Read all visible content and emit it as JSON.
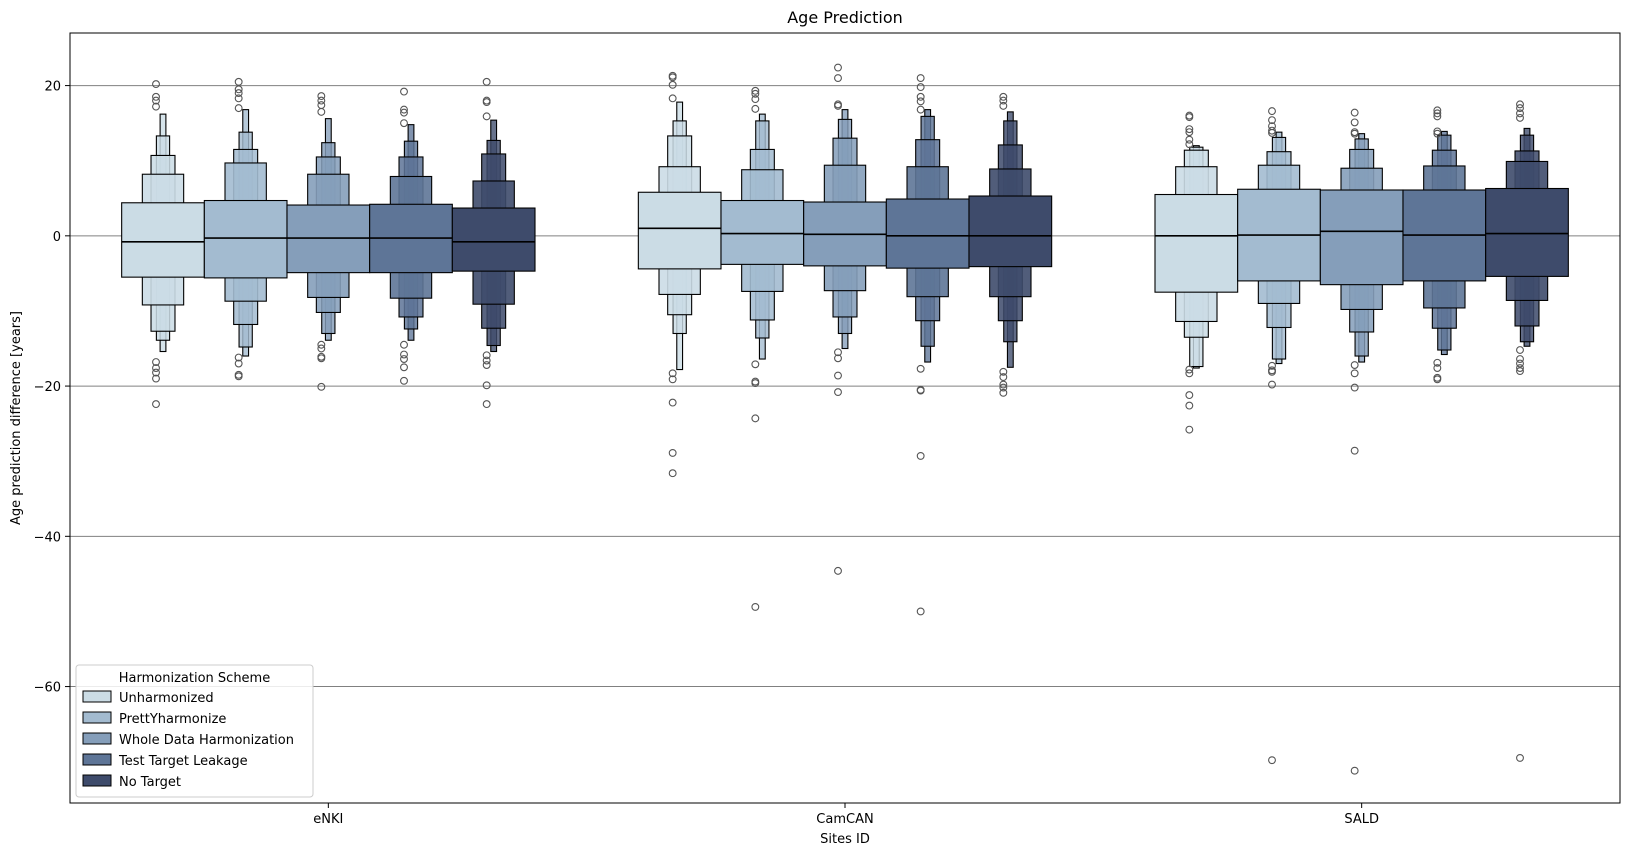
{
  "chart_data": {
    "type": "boxen",
    "title": "Age Prediction",
    "xlabel": "Sites ID",
    "ylabel": "Age prediction difference [years]",
    "categories": [
      "eNKI",
      "CamCAN",
      "SALD"
    ],
    "ylim": [
      -75.5,
      27
    ],
    "yticks": [
      20,
      0,
      -20,
      -40,
      -60
    ],
    "grid": "horizontal",
    "legend": {
      "title": "Harmonization Scheme",
      "placement": "lower-left"
    },
    "series": [
      {
        "name": "Unharmonized",
        "color": "#cbdce5",
        "data": [
          {
            "median": -0.8,
            "levels": [
              [
                -5.5,
                4.4
              ],
              [
                -9.2,
                8.2
              ],
              [
                -12.7,
                10.7
              ],
              [
                -13.9,
                13.3
              ],
              [
                -15.4,
                16.2
              ]
            ],
            "outliers": [
              20.2,
              18.5,
              18.0,
              17.2,
              -16.8,
              -17.6,
              -18.2,
              -19.0,
              -22.4
            ]
          },
          {
            "median": 1.0,
            "levels": [
              [
                -4.4,
                5.8
              ],
              [
                -7.8,
                9.2
              ],
              [
                -10.5,
                13.3
              ],
              [
                -13.0,
                15.3
              ],
              [
                -17.8,
                17.8
              ]
            ],
            "outliers": [
              21.3,
              21.1,
              20.1,
              18.3,
              -18.3,
              -19.1,
              -22.2,
              -28.9,
              -31.6
            ]
          },
          {
            "median": 0.0,
            "levels": [
              [
                -7.5,
                5.5
              ],
              [
                -11.4,
                9.2
              ],
              [
                -13.5,
                11.4
              ],
              [
                -17.4,
                11.8
              ],
              [
                -17.6,
                12.0
              ]
            ],
            "outliers": [
              16.0,
              15.8,
              14.2,
              13.8,
              12.8,
              12.2,
              -17.8,
              -18.3,
              -21.2,
              -22.6,
              -25.8
            ]
          }
        ]
      },
      {
        "name": "PrettYharmonize",
        "color": "#a3bbd0",
        "data": [
          {
            "median": -0.3,
            "levels": [
              [
                -5.6,
                4.7
              ],
              [
                -8.7,
                9.7
              ],
              [
                -11.8,
                11.5
              ],
              [
                -14.8,
                13.8
              ],
              [
                -16.0,
                16.8
              ]
            ],
            "outliers": [
              20.5,
              19.5,
              19.0,
              18.3,
              17.0,
              -16.2,
              -17.0,
              -18.5,
              -18.7
            ]
          },
          {
            "median": 0.3,
            "levels": [
              [
                -3.8,
                4.7
              ],
              [
                -7.4,
                8.8
              ],
              [
                -11.2,
                11.5
              ],
              [
                -13.6,
                15.3
              ],
              [
                -16.4,
                16.2
              ]
            ],
            "outliers": [
              19.3,
              18.9,
              18.2,
              16.9,
              -17.1,
              -19.4,
              -19.6,
              -24.3,
              -49.4
            ]
          },
          {
            "median": 0.1,
            "levels": [
              [
                -6.0,
                6.2
              ],
              [
                -9.0,
                9.4
              ],
              [
                -12.2,
                11.2
              ],
              [
                -16.4,
                13.1
              ],
              [
                -17.0,
                13.8
              ]
            ],
            "outliers": [
              16.6,
              15.4,
              14.6,
              14.0,
              13.7,
              -17.3,
              -17.9,
              -18.1,
              -19.8,
              -69.8
            ]
          }
        ]
      },
      {
        "name": "Whole Data Harmonization",
        "color": "#859eba",
        "data": [
          {
            "median": -0.3,
            "levels": [
              [
                -4.9,
                4.1
              ],
              [
                -8.2,
                8.2
              ],
              [
                -10.2,
                10.5
              ],
              [
                -13.0,
                12.4
              ],
              [
                -13.9,
                15.6
              ]
            ],
            "outliers": [
              18.6,
              18.0,
              17.4,
              16.5,
              -14.5,
              -15.0,
              -16.1,
              -16.3,
              -20.1
            ]
          },
          {
            "median": 0.2,
            "levels": [
              [
                -4.0,
                4.5
              ],
              [
                -7.3,
                9.4
              ],
              [
                -10.8,
                13.0
              ],
              [
                -13.0,
                15.5
              ],
              [
                -15.0,
                16.8
              ]
            ],
            "outliers": [
              22.4,
              21.0,
              17.5,
              17.3,
              -15.5,
              -16.3,
              -18.6,
              -20.8,
              -44.6
            ]
          },
          {
            "median": 0.6,
            "levels": [
              [
                -6.5,
                6.1
              ],
              [
                -9.8,
                9.0
              ],
              [
                -12.8,
                11.5
              ],
              [
                -16.0,
                12.9
              ],
              [
                -16.8,
                13.6
              ]
            ],
            "outliers": [
              16.4,
              15.1,
              13.8,
              13.6,
              -17.2,
              -18.3,
              -20.2,
              -28.6,
              -71.2
            ]
          }
        ]
      },
      {
        "name": "Test Target Leakage",
        "color": "#5e7597",
        "data": [
          {
            "median": -0.3,
            "levels": [
              [
                -4.9,
                4.2
              ],
              [
                -8.3,
                7.9
              ],
              [
                -10.8,
                10.5
              ],
              [
                -12.4,
                12.6
              ],
              [
                -13.9,
                14.8
              ]
            ],
            "outliers": [
              19.2,
              16.8,
              16.4,
              15.0,
              -14.5,
              -15.8,
              -16.4,
              -17.5,
              -19.3
            ]
          },
          {
            "median": 0.0,
            "levels": [
              [
                -4.3,
                4.9
              ],
              [
                -8.1,
                9.2
              ],
              [
                -11.3,
                12.8
              ],
              [
                -14.7,
                15.9
              ],
              [
                -16.8,
                16.8
              ]
            ],
            "outliers": [
              21.0,
              19.8,
              18.5,
              17.9,
              16.8,
              -17.7,
              -20.5,
              -20.6,
              -29.3,
              -50.0
            ]
          },
          {
            "median": 0.1,
            "levels": [
              [
                -6.0,
                6.1
              ],
              [
                -9.6,
                9.3
              ],
              [
                -12.3,
                11.4
              ],
              [
                -15.2,
                13.4
              ],
              [
                -15.8,
                13.9
              ]
            ],
            "outliers": [
              16.7,
              16.3,
              15.9,
              13.9,
              13.6,
              -16.9,
              -17.6,
              -18.9,
              -19.1
            ]
          }
        ]
      },
      {
        "name": "No Target",
        "color": "#3e4b6b",
        "data": [
          {
            "median": -0.8,
            "levels": [
              [
                -4.7,
                3.7
              ],
              [
                -9.1,
                7.3
              ],
              [
                -12.3,
                10.9
              ],
              [
                -14.6,
                12.7
              ],
              [
                -15.4,
                15.4
              ]
            ],
            "outliers": [
              20.5,
              18.0,
              17.8,
              15.9,
              -15.9,
              -16.6,
              -17.2,
              -19.9,
              -22.4
            ]
          },
          {
            "median": 0.0,
            "levels": [
              [
                -4.1,
                5.3
              ],
              [
                -8.1,
                8.9
              ],
              [
                -11.3,
                12.1
              ],
              [
                -14.1,
                15.3
              ],
              [
                -17.5,
                16.5
              ]
            ],
            "outliers": [
              18.5,
              18.0,
              17.3,
              -18.1,
              -18.8,
              -19.8,
              -20.2,
              -20.9
            ]
          },
          {
            "median": 0.3,
            "levels": [
              [
                -5.4,
                6.3
              ],
              [
                -8.6,
                9.9
              ],
              [
                -12.0,
                11.3
              ],
              [
                -14.1,
                13.4
              ],
              [
                -14.7,
                14.3
              ]
            ],
            "outliers": [
              17.5,
              17.0,
              16.3,
              15.7,
              -15.2,
              -16.4,
              -17.0,
              -17.6,
              -18.0,
              -69.5
            ]
          }
        ]
      }
    ]
  }
}
